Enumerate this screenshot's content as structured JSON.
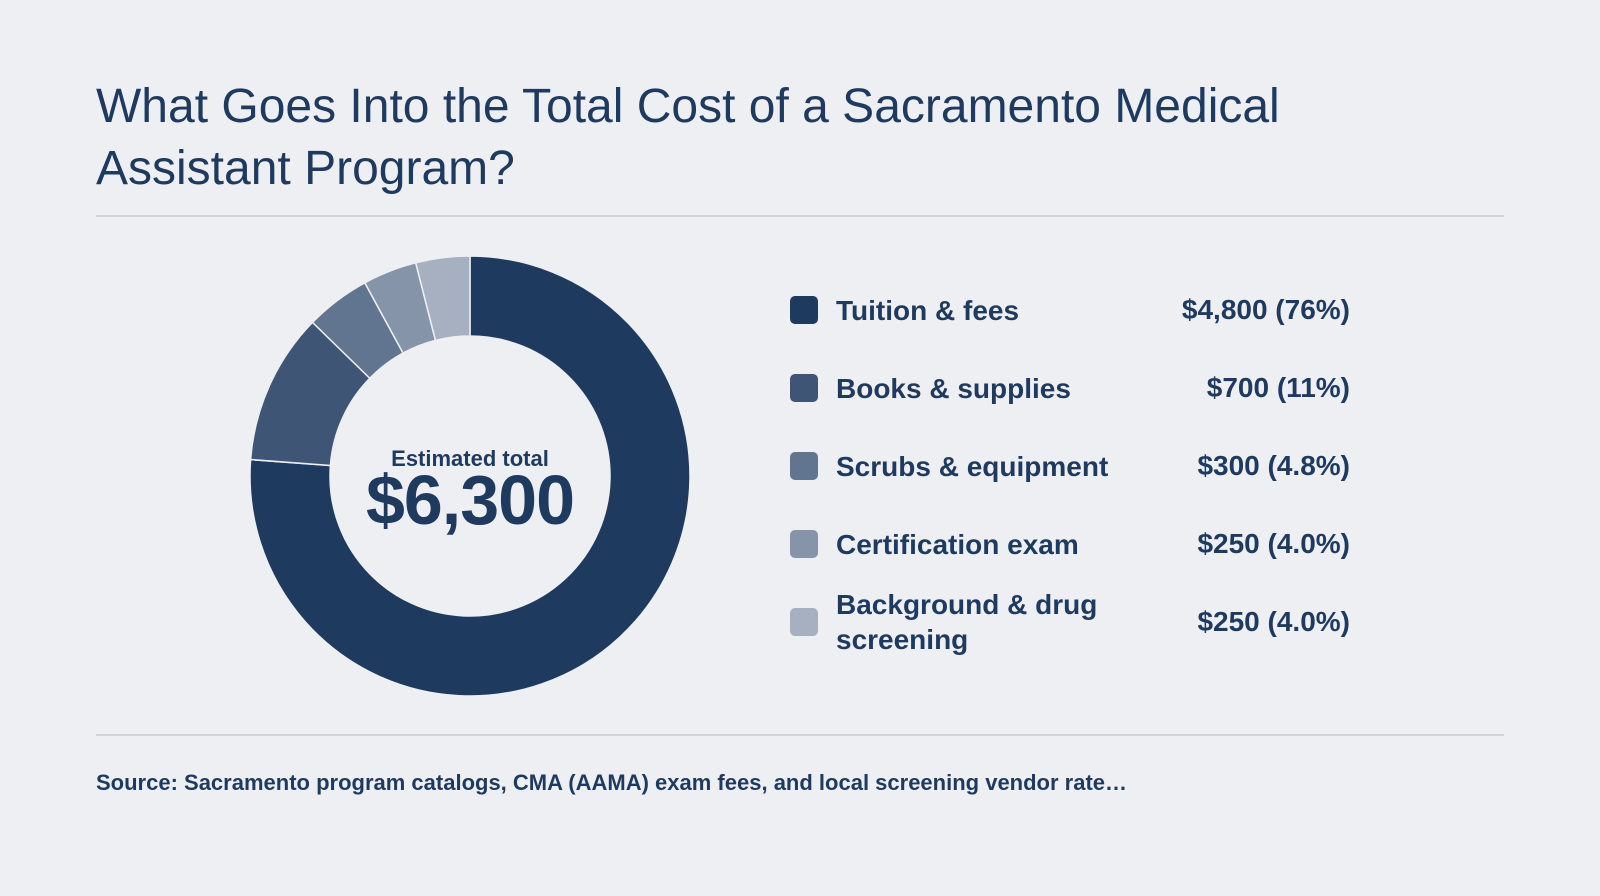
{
  "title": "What Goes Into the Total Cost of a Sacramento Medical Assistant Program?",
  "center": {
    "label": "Estimated total",
    "value": "$6,300"
  },
  "source": "Source: Sacramento program catalogs, CMA (AAMA) exam fees, and local screening vendor rate…",
  "chart_data": {
    "type": "pie",
    "variant": "donut",
    "title": "What Goes Into the Total Cost of a Sacramento Medical Assistant Program?",
    "total": 6300,
    "categories": [
      "Tuition & fees",
      "Books & supplies",
      "Scrubs & equipment",
      "Certification exam",
      "Background & drug screening"
    ],
    "values": [
      4800,
      700,
      300,
      250,
      250
    ],
    "value_labels": [
      "$4,800 (76%)",
      "$700 (11%)",
      "$300 (4.8%)",
      "$250 (4.0%)",
      "$250 (4.0%)"
    ],
    "colors": [
      "#1f3a5f",
      "#3f5575",
      "#627590",
      "#8694aa",
      "#a7b0c1"
    ],
    "legend_position": "right"
  }
}
